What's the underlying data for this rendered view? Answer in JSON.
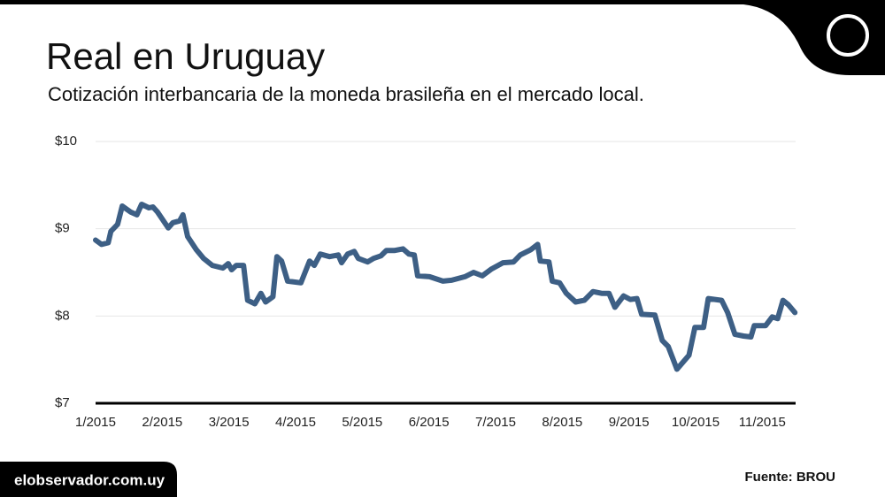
{
  "chart_data": {
    "type": "line",
    "title": "Real en Uruguay",
    "subtitle": "Cotización interbancaria de la moneda brasileña en el mercado local.",
    "source": "Fuente: BROU",
    "site": "elobservador.com.uy",
    "xlim": [
      1,
      11.5
    ],
    "xticks": [
      {
        "value": 1,
        "label": "1/2015"
      },
      {
        "value": 2,
        "label": "2/2015"
      },
      {
        "value": 3,
        "label": "3/2015"
      },
      {
        "value": 4,
        "label": "4/2015"
      },
      {
        "value": 5,
        "label": "5/2015"
      },
      {
        "value": 6,
        "label": "6/2015"
      },
      {
        "value": 7,
        "label": "7/2015"
      },
      {
        "value": 8,
        "label": "8/2015"
      },
      {
        "value": 9,
        "label": "9/2015"
      },
      {
        "value": 10,
        "label": "10/2015"
      },
      {
        "value": 11,
        "label": "11/2015"
      }
    ],
    "ylim": [
      7,
      10
    ],
    "yticks": [
      {
        "value": 7,
        "label": "$7"
      },
      {
        "value": 8,
        "label": "$8"
      },
      {
        "value": 9,
        "label": "$9"
      },
      {
        "value": 10,
        "label": "$10"
      }
    ],
    "grid": true,
    "x": [
      1.0,
      1.09,
      1.19,
      1.23,
      1.33,
      1.4,
      1.53,
      1.62,
      1.69,
      1.8,
      1.86,
      1.93,
      2.09,
      2.16,
      2.26,
      2.31,
      2.38,
      2.51,
      2.62,
      2.75,
      2.91,
      2.99,
      3.04,
      3.11,
      3.22,
      3.28,
      3.39,
      3.48,
      3.55,
      3.66,
      3.72,
      3.79,
      3.88,
      4.08,
      4.21,
      4.28,
      4.37,
      4.51,
      4.64,
      4.69,
      4.78,
      4.88,
      4.94,
      5.08,
      5.17,
      5.28,
      5.36,
      5.48,
      5.61,
      5.7,
      5.78,
      5.83,
      6.01,
      6.21,
      6.34,
      6.54,
      6.67,
      6.8,
      6.94,
      7.11,
      7.27,
      7.37,
      7.53,
      7.63,
      7.67,
      7.8,
      7.85,
      7.96,
      8.06,
      8.2,
      8.33,
      8.46,
      8.59,
      8.7,
      8.79,
      8.92,
      9.02,
      9.12,
      9.19,
      9.39,
      9.5,
      9.59,
      9.72,
      9.9,
      9.99,
      10.12,
      10.19,
      10.39,
      10.48,
      10.59,
      10.72,
      10.83,
      10.88,
      11.05,
      11.15,
      11.23,
      11.31,
      11.39,
      11.49
    ],
    "series": [
      {
        "color": "#3d5f85",
        "values": [
          8.87,
          8.82,
          8.84,
          8.97,
          9.05,
          9.26,
          9.19,
          9.16,
          9.28,
          9.24,
          9.25,
          9.19,
          9.01,
          9.07,
          9.09,
          9.16,
          8.91,
          8.76,
          8.66,
          8.58,
          8.55,
          8.6,
          8.53,
          8.58,
          8.58,
          8.18,
          8.14,
          8.26,
          8.16,
          8.22,
          8.68,
          8.63,
          8.4,
          8.38,
          8.63,
          8.58,
          8.71,
          8.68,
          8.7,
          8.61,
          8.71,
          8.74,
          8.66,
          8.62,
          8.66,
          8.69,
          8.75,
          8.75,
          8.77,
          8.71,
          8.7,
          8.46,
          8.45,
          8.4,
          8.41,
          8.45,
          8.5,
          8.46,
          8.54,
          8.61,
          8.62,
          8.7,
          8.76,
          8.82,
          8.63,
          8.62,
          8.4,
          8.38,
          8.26,
          8.16,
          8.18,
          8.28,
          8.26,
          8.26,
          8.1,
          8.23,
          8.19,
          8.2,
          8.02,
          8.01,
          7.72,
          7.65,
          7.39,
          7.55,
          7.87,
          7.87,
          8.2,
          8.18,
          8.04,
          7.79,
          7.77,
          7.76,
          7.89,
          7.89,
          7.99,
          7.97,
          8.18,
          8.13,
          8.04
        ]
      }
    ]
  }
}
